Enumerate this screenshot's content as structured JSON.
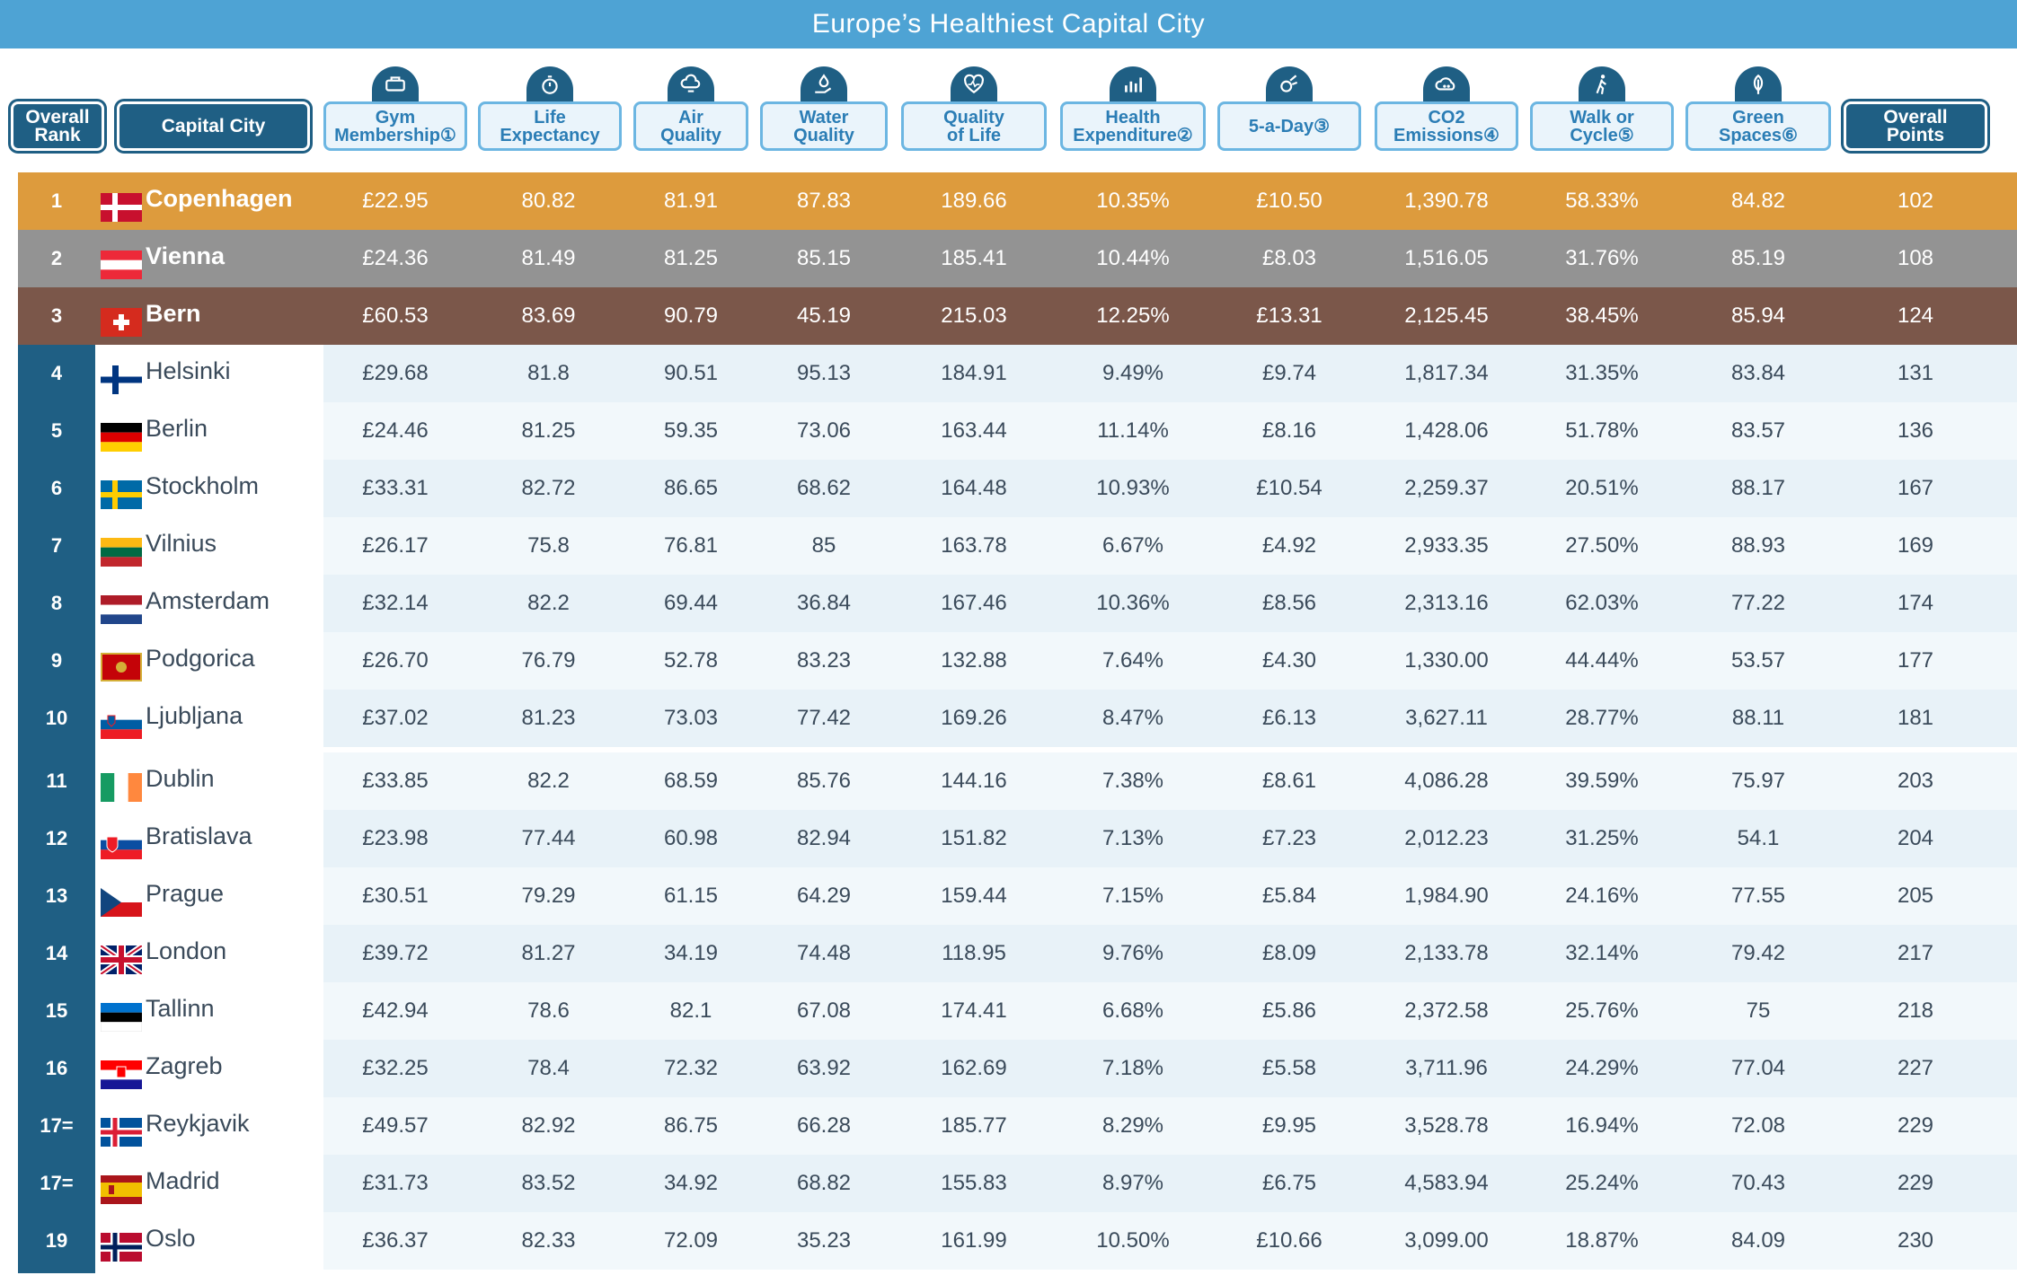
{
  "title": "Europe’s Healthiest Capital City",
  "colors": {
    "header_blue": "#4ea3d4",
    "dark_blue": "#1f5f84",
    "gold": "#dd9b3d",
    "silver": "#939393",
    "bronze": "#7b574a",
    "row_light": "#e8f2f8",
    "row_lighter": "#f2f8fb"
  },
  "headers": [
    {
      "key": "rank",
      "label": "Overall\nRank",
      "style": "dark",
      "icon": null
    },
    {
      "key": "city",
      "label": "Capital City",
      "style": "dark",
      "icon": null
    },
    {
      "key": "gym",
      "label": "Gym\nMembership①",
      "style": "light",
      "icon": "gym-icon"
    },
    {
      "key": "life",
      "label": "Life\nExpectancy",
      "style": "light",
      "icon": "stopwatch-icon"
    },
    {
      "key": "air",
      "label": "Air\nQuality",
      "style": "light",
      "icon": "cloud-wind-icon"
    },
    {
      "key": "water",
      "label": "Water\nQuality",
      "style": "light",
      "icon": "water-hand-icon"
    },
    {
      "key": "qol",
      "label": "Quality\nof Life",
      "style": "light",
      "icon": "heart-pulse-icon"
    },
    {
      "key": "health",
      "label": "Health\nExpenditure②",
      "style": "light",
      "icon": "bar-chart-icon"
    },
    {
      "key": "five",
      "label": "5-a-Day③",
      "style": "light",
      "icon": "fruit-icon"
    },
    {
      "key": "co2",
      "label": "CO2\nEmissions④",
      "style": "light",
      "icon": "co2-cloud-icon"
    },
    {
      "key": "walk",
      "label": "Walk or\nCycle⑤",
      "style": "light",
      "icon": "walking-person-icon"
    },
    {
      "key": "green",
      "label": "Green\nSpaces⑥",
      "style": "light",
      "icon": "leaf-icon"
    },
    {
      "key": "points",
      "label": "Overall\nPoints",
      "style": "dark",
      "icon": null
    }
  ],
  "chart_data": {
    "type": "table",
    "title": "Europe’s Healthiest Capital City",
    "columns": [
      "Overall Rank",
      "Capital City",
      "Gym Membership",
      "Life Expectancy",
      "Air Quality",
      "Water Quality",
      "Quality of Life",
      "Health Expenditure",
      "5-a-Day",
      "CO2 Emissions",
      "Walk or Cycle",
      "Green Spaces",
      "Overall Points"
    ],
    "rows": [
      {
        "rank": "1",
        "city": "Copenhagen",
        "flag": "denmark",
        "gym": "£22.95",
        "life": "80.82",
        "air": "81.91",
        "water": "87.83",
        "qol": "189.66",
        "health": "10.35%",
        "five": "£10.50",
        "co2": "1,390.78",
        "walk": "58.33%",
        "green": "84.82",
        "points": "102"
      },
      {
        "rank": "2",
        "city": "Vienna",
        "flag": "austria",
        "gym": "£24.36",
        "life": "81.49",
        "air": "81.25",
        "water": "85.15",
        "qol": "185.41",
        "health": "10.44%",
        "five": "£8.03",
        "co2": "1,516.05",
        "walk": "31.76%",
        "green": "85.19",
        "points": "108"
      },
      {
        "rank": "3",
        "city": "Bern",
        "flag": "switzerland",
        "gym": "£60.53",
        "life": "83.69",
        "air": "90.79",
        "water": "45.19",
        "qol": "215.03",
        "health": "12.25%",
        "five": "£13.31",
        "co2": "2,125.45",
        "walk": "38.45%",
        "green": "85.94",
        "points": "124"
      },
      {
        "rank": "4",
        "city": "Helsinki",
        "flag": "finland",
        "gym": "£29.68",
        "life": "81.8",
        "air": "90.51",
        "water": "95.13",
        "qol": "184.91",
        "health": "9.49%",
        "five": "£9.74",
        "co2": "1,817.34",
        "walk": "31.35%",
        "green": "83.84",
        "points": "131"
      },
      {
        "rank": "5",
        "city": "Berlin",
        "flag": "germany",
        "gym": "£24.46",
        "life": "81.25",
        "air": "59.35",
        "water": "73.06",
        "qol": "163.44",
        "health": "11.14%",
        "five": "£8.16",
        "co2": "1,428.06",
        "walk": "51.78%",
        "green": "83.57",
        "points": "136"
      },
      {
        "rank": "6",
        "city": "Stockholm",
        "flag": "sweden",
        "gym": "£33.31",
        "life": "82.72",
        "air": "86.65",
        "water": "68.62",
        "qol": "164.48",
        "health": "10.93%",
        "five": "£10.54",
        "co2": "2,259.37",
        "walk": "20.51%",
        "green": "88.17",
        "points": "167"
      },
      {
        "rank": "7",
        "city": "Vilnius",
        "flag": "lithuania",
        "gym": "£26.17",
        "life": "75.8",
        "air": "76.81",
        "water": "85",
        "qol": "163.78",
        "health": "6.67%",
        "five": "£4.92",
        "co2": "2,933.35",
        "walk": "27.50%",
        "green": "88.93",
        "points": "169"
      },
      {
        "rank": "8",
        "city": "Amsterdam",
        "flag": "netherlands",
        "gym": "£32.14",
        "life": "82.2",
        "air": "69.44",
        "water": "36.84",
        "qol": "167.46",
        "health": "10.36%",
        "five": "£8.56",
        "co2": "2,313.16",
        "walk": "62.03%",
        "green": "77.22",
        "points": "174"
      },
      {
        "rank": "9",
        "city": "Podgorica",
        "flag": "montenegro",
        "gym": "£26.70",
        "life": "76.79",
        "air": "52.78",
        "water": "83.23",
        "qol": "132.88",
        "health": "7.64%",
        "five": "£4.30",
        "co2": "1,330.00",
        "walk": "44.44%",
        "green": "53.57",
        "points": "177"
      },
      {
        "rank": "10",
        "city": "Ljubljana",
        "flag": "slovenia",
        "gym": "£37.02",
        "life": "81.23",
        "air": "73.03",
        "water": "77.42",
        "qol": "169.26",
        "health": "8.47%",
        "five": "£6.13",
        "co2": "3,627.11",
        "walk": "28.77%",
        "green": "88.11",
        "points": "181"
      },
      {
        "rank": "11",
        "city": "Dublin",
        "flag": "ireland",
        "gym": "£33.85",
        "life": "82.2",
        "air": "68.59",
        "water": "85.76",
        "qol": "144.16",
        "health": "7.38%",
        "five": "£8.61",
        "co2": "4,086.28",
        "walk": "39.59%",
        "green": "75.97",
        "points": "203"
      },
      {
        "rank": "12",
        "city": "Bratislava",
        "flag": "slovakia",
        "gym": "£23.98",
        "life": "77.44",
        "air": "60.98",
        "water": "82.94",
        "qol": "151.82",
        "health": "7.13%",
        "five": "£7.23",
        "co2": "2,012.23",
        "walk": "31.25%",
        "green": "54.1",
        "points": "204"
      },
      {
        "rank": "13",
        "city": "Prague",
        "flag": "czechia",
        "gym": "£30.51",
        "life": "79.29",
        "air": "61.15",
        "water": "64.29",
        "qol": "159.44",
        "health": "7.15%",
        "five": "£5.84",
        "co2": "1,984.90",
        "walk": "24.16%",
        "green": "77.55",
        "points": "205"
      },
      {
        "rank": "14",
        "city": "London",
        "flag": "uk",
        "gym": "£39.72",
        "life": "81.27",
        "air": "34.19",
        "water": "74.48",
        "qol": "118.95",
        "health": "9.76%",
        "five": "£8.09",
        "co2": "2,133.78",
        "walk": "32.14%",
        "green": "79.42",
        "points": "217"
      },
      {
        "rank": "15",
        "city": "Tallinn",
        "flag": "estonia",
        "gym": "£42.94",
        "life": "78.6",
        "air": "82.1",
        "water": "67.08",
        "qol": "174.41",
        "health": "6.68%",
        "five": "£5.86",
        "co2": "2,372.58",
        "walk": "25.76%",
        "green": "75",
        "points": "218"
      },
      {
        "rank": "16",
        "city": "Zagreb",
        "flag": "croatia",
        "gym": "£32.25",
        "life": "78.4",
        "air": "72.32",
        "water": "63.92",
        "qol": "162.69",
        "health": "7.18%",
        "five": "£5.58",
        "co2": "3,711.96",
        "walk": "24.29%",
        "green": "77.04",
        "points": "227"
      },
      {
        "rank": "17=",
        "city": "Reykjavik",
        "flag": "iceland",
        "gym": "£49.57",
        "life": "82.92",
        "air": "86.75",
        "water": "66.28",
        "qol": "185.77",
        "health": "8.29%",
        "five": "£9.95",
        "co2": "3,528.78",
        "walk": "16.94%",
        "green": "72.08",
        "points": "229"
      },
      {
        "rank": "17=",
        "city": "Madrid",
        "flag": "spain",
        "gym": "£31.73",
        "life": "83.52",
        "air": "34.92",
        "water": "68.82",
        "qol": "155.83",
        "health": "8.97%",
        "five": "£6.75",
        "co2": "4,583.94",
        "walk": "25.24%",
        "green": "70.43",
        "points": "229"
      },
      {
        "rank": "19",
        "city": "Oslo",
        "flag": "norway",
        "gym": "£36.37",
        "life": "82.33",
        "air": "72.09",
        "water": "35.23",
        "qol": "161.99",
        "health": "10.50%",
        "five": "£10.66",
        "co2": "3,099.00",
        "walk": "18.87%",
        "green": "84.09",
        "points": "230"
      }
    ]
  }
}
